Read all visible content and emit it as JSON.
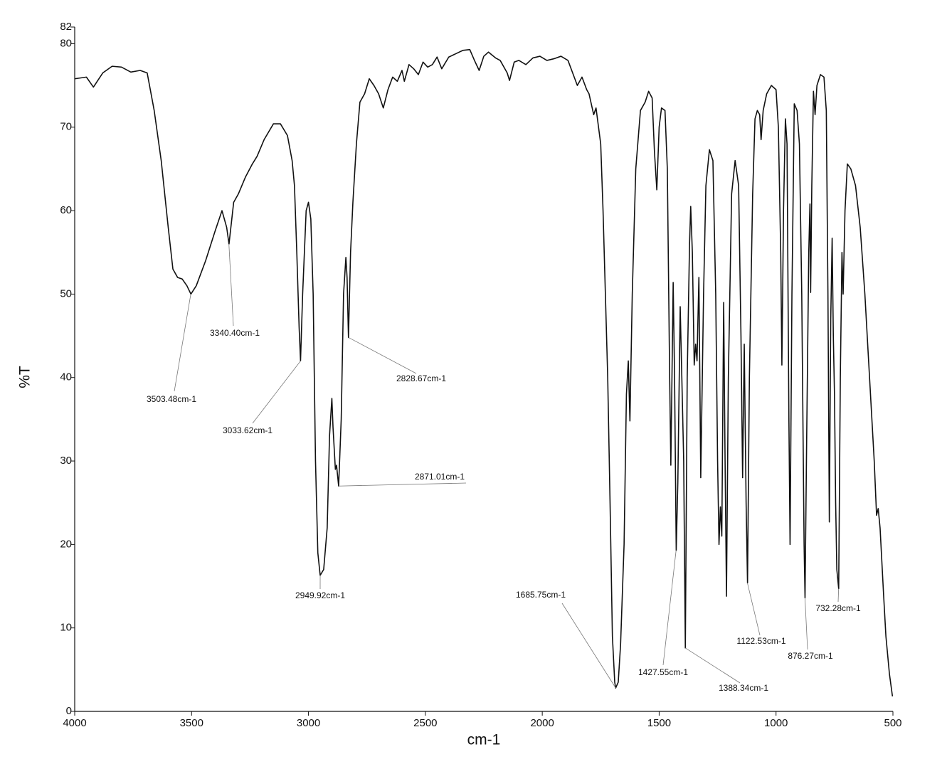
{
  "chart_data": {
    "type": "line",
    "xlabel": "cm-1",
    "ylabel": "%T",
    "xlim": [
      4000,
      500
    ],
    "ylim": [
      0,
      82
    ],
    "xticks": [
      4000,
      3500,
      3000,
      2500,
      2000,
      1500,
      1000,
      500
    ],
    "yticks": [
      0,
      10,
      20,
      30,
      40,
      50,
      60,
      70,
      80,
      82
    ],
    "color": "#111111",
    "x": [
      4000,
      3950,
      3920,
      3880,
      3840,
      3800,
      3760,
      3720,
      3690,
      3660,
      3630,
      3600,
      3580,
      3560,
      3540,
      3520,
      3503,
      3480,
      3440,
      3400,
      3370,
      3350,
      3340,
      3320,
      3300,
      3270,
      3240,
      3220,
      3190,
      3150,
      3120,
      3090,
      3070,
      3060,
      3050,
      3040,
      3034,
      3025,
      3010,
      3000,
      2990,
      2980,
      2970,
      2960,
      2950,
      2935,
      2920,
      2910,
      2900,
      2895,
      2885,
      2880,
      2871,
      2860,
      2850,
      2840,
      2835,
      2829,
      2820,
      2810,
      2795,
      2780,
      2760,
      2740,
      2720,
      2700,
      2680,
      2660,
      2640,
      2620,
      2600,
      2590,
      2570,
      2550,
      2530,
      2510,
      2490,
      2470,
      2450,
      2430,
      2400,
      2370,
      2340,
      2310,
      2290,
      2270,
      2250,
      2230,
      2200,
      2180,
      2150,
      2140,
      2120,
      2100,
      2070,
      2040,
      2010,
      1980,
      1950,
      1920,
      1890,
      1870,
      1850,
      1830,
      1810,
      1800,
      1780,
      1770,
      1750,
      1740,
      1730,
      1720,
      1710,
      1700,
      1690,
      1686,
      1675,
      1665,
      1650,
      1640,
      1632,
      1625,
      1615,
      1600,
      1580,
      1560,
      1545,
      1530,
      1520,
      1510,
      1500,
      1490,
      1475,
      1465,
      1455,
      1450,
      1440,
      1434,
      1427,
      1420,
      1410,
      1403,
      1395,
      1388,
      1380,
      1370,
      1365,
      1358,
      1350,
      1344,
      1338,
      1330,
      1322,
      1310,
      1300,
      1285,
      1270,
      1258,
      1250,
      1244,
      1238,
      1232,
      1224,
      1218,
      1212,
      1204,
      1190,
      1175,
      1160,
      1150,
      1143,
      1136,
      1128,
      1122,
      1114,
      1100,
      1090,
      1080,
      1070,
      1064,
      1055,
      1040,
      1020,
      1000,
      990,
      980,
      975,
      968,
      960,
      953,
      945,
      940,
      932,
      922,
      910,
      900,
      890,
      880,
      876,
      870,
      860,
      855,
      852,
      847,
      840,
      833,
      825,
      810,
      795,
      785,
      778,
      772,
      766,
      760,
      755,
      750,
      745,
      740,
      732,
      725,
      718,
      713,
      705,
      695,
      680,
      660,
      640,
      620,
      600,
      580,
      570,
      563,
      555,
      540,
      530,
      515,
      502
    ],
    "values": [
      75.8,
      76,
      74.8,
      76.5,
      77.3,
      77.2,
      76.6,
      76.8,
      76.5,
      72,
      66,
      58,
      53,
      52,
      51.8,
      51,
      50,
      51,
      54,
      57.5,
      60,
      58,
      56,
      61,
      62,
      64,
      65.6,
      66.5,
      68.5,
      70.4,
      70.4,
      69,
      66,
      63,
      55,
      46,
      42,
      50,
      60,
      61,
      59,
      50,
      30,
      19,
      16.3,
      17,
      22,
      33,
      37.5,
      34,
      29,
      29.5,
      27,
      35,
      50,
      54.4,
      52,
      44.8,
      55,
      61,
      68,
      73,
      74,
      75.8,
      75,
      74,
      72.3,
      74.5,
      76,
      75.5,
      76.8,
      75.5,
      77.5,
      77,
      76.3,
      77.8,
      77.2,
      77.5,
      78.4,
      77,
      78.4,
      78.8,
      79.2,
      79.3,
      78,
      76.8,
      78.5,
      79,
      78.3,
      78,
      76.5,
      75.6,
      77.8,
      78,
      77.5,
      78.3,
      78.5,
      78,
      78.2,
      78.5,
      78,
      76.5,
      75,
      76,
      74.5,
      74,
      71.5,
      72.3,
      68,
      60,
      50,
      40,
      25,
      9,
      3.5,
      2.8,
      3.5,
      8,
      20,
      38,
      42,
      34.8,
      50,
      65,
      72,
      73,
      74.3,
      73.5,
      67,
      62.5,
      70,
      72.3,
      72,
      65,
      40,
      29.5,
      51.4,
      40,
      19.3,
      27.5,
      48.5,
      40,
      30,
      7.6,
      40,
      56,
      60.5,
      55,
      41.5,
      44,
      42,
      52,
      28,
      50,
      63,
      67.3,
      66,
      50,
      30,
      20,
      24.5,
      21,
      49,
      30,
      13.8,
      40,
      62,
      66,
      63,
      45,
      28,
      44,
      25,
      15.4,
      40,
      62,
      71,
      72,
      71.5,
      68.5,
      72,
      74,
      75,
      74.5,
      70,
      55,
      41.5,
      60,
      71,
      68,
      35,
      20,
      50,
      72.8,
      72,
      68,
      50,
      20,
      13.6,
      30,
      55,
      60.8,
      50.2,
      63,
      74.3,
      71.5,
      75,
      76.3,
      76,
      72,
      50,
      22.7,
      47,
      56.7,
      45,
      38,
      25,
      17,
      14.7,
      40,
      55,
      50,
      60,
      65.6,
      65,
      63,
      58,
      50,
      40,
      30,
      23.5,
      24.3,
      22,
      14,
      9,
      4.5,
      1.8
    ],
    "annotations": [
      {
        "label": "3503.48cm-1",
        "x": 3503.48,
        "y": 50
      },
      {
        "label": "3340.40cm-1",
        "x": 3340.4,
        "y": 56
      },
      {
        "label": "3033.62cm-1",
        "x": 3033.62,
        "y": 42
      },
      {
        "label": "2949.92cm-1",
        "x": 2949.92,
        "y": 16.3
      },
      {
        "label": "2871.01cm-1",
        "x": 2871.01,
        "y": 27
      },
      {
        "label": "2828.67cm-1",
        "x": 2828.67,
        "y": 44.8
      },
      {
        "label": "1685.75cm-1",
        "x": 1685.75,
        "y": 2.8
      },
      {
        "label": "1427.55cm-1",
        "x": 1427.55,
        "y": 19.3
      },
      {
        "label": "1388.34cm-1",
        "x": 1388.34,
        "y": 7.6
      },
      {
        "label": "1122.53cm-1",
        "x": 1122.53,
        "y": 15.4
      },
      {
        "label": "876.27cm-1",
        "x": 876.27,
        "y": 13.6
      },
      {
        "label": "732.28cm-1",
        "x": 732.28,
        "y": 14.7
      }
    ]
  }
}
